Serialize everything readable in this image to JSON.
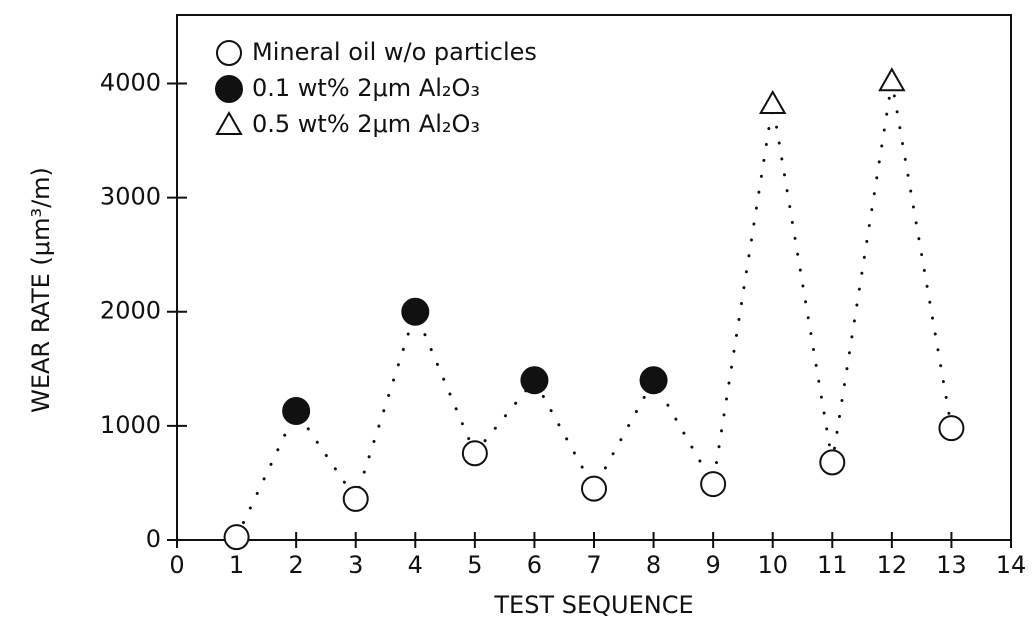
{
  "chart_data": {
    "type": "scatter",
    "xlabel": "TEST SEQUENCE",
    "ylabel": "WEAR RATE (μm³/m)",
    "x": [
      1,
      2,
      3,
      4,
      5,
      6,
      7,
      8,
      9,
      10,
      11,
      12,
      13
    ],
    "values": [
      25,
      1130,
      360,
      2000,
      760,
      1400,
      450,
      1400,
      490,
      3820,
      680,
      4020,
      980
    ],
    "markers": [
      "open-circle",
      "filled-circle",
      "open-circle",
      "filled-circle",
      "open-circle",
      "filled-circle",
      "open-circle",
      "filled-circle",
      "open-circle",
      "open-triangle",
      "open-circle",
      "open-triangle",
      "open-circle"
    ],
    "legend": [
      {
        "name": "Mineral oil w/o particles",
        "marker": "open-circle"
      },
      {
        "name": "0.1 wt% 2μm Al₂O₃",
        "marker": "filled-circle"
      },
      {
        "name": "0.5 wt% 2μm Al₂O₃",
        "marker": "open-triangle"
      }
    ],
    "line_style": "dotted",
    "color": "#111111",
    "xlim": [
      0,
      14
    ],
    "xticks": [
      0,
      1,
      2,
      3,
      4,
      5,
      6,
      7,
      8,
      9,
      10,
      11,
      12,
      13,
      14
    ],
    "ylim": [
      0,
      4600
    ],
    "yticks": [
      0,
      1000,
      2000,
      3000,
      4000
    ]
  }
}
